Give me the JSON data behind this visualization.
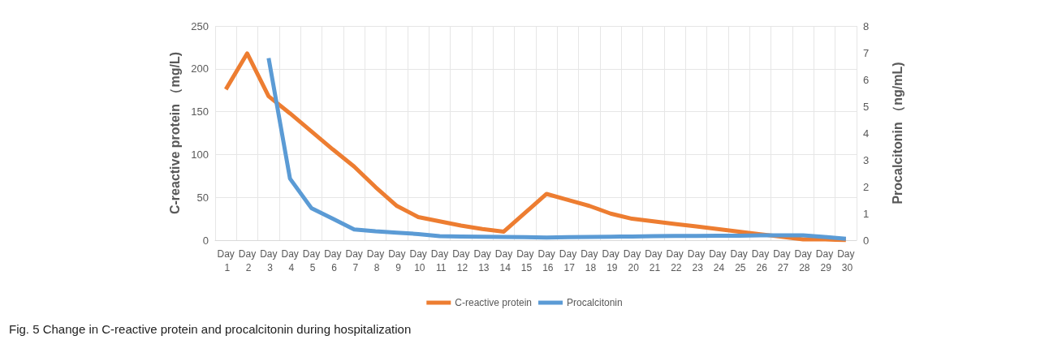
{
  "chart_data": {
    "type": "line",
    "title": "Fig. 5 Change in C-reactive protein and procalcitonin during hospitalization",
    "ylabel": "C-reactive protein （mg/L)",
    "y2label": "Procalcitonin （ng/mL)",
    "categories": [
      "Day 1",
      "Day 2",
      "Day 3",
      "Day 4",
      "Day 5",
      "Day 6",
      "Day 7",
      "Day 8",
      "Day 9",
      "Day 10",
      "Day 11",
      "Day 12",
      "Day 13",
      "Day 14",
      "Day 15",
      "Day 16",
      "Day 17",
      "Day 18",
      "Day 19",
      "Day 20",
      "Day 21",
      "Day 22",
      "Day 23",
      "Day 24",
      "Day 25",
      "Day 26",
      "Day 27",
      "Day 28",
      "Day 29",
      "Day 30"
    ],
    "series": [
      {
        "name": "C-reactive protein",
        "color": "#ed7d31",
        "values": [
          176,
          218,
          168,
          148,
          127,
          106,
          86,
          62,
          40,
          27,
          22,
          17,
          13,
          10,
          32,
          54,
          47,
          40,
          31,
          25,
          22,
          19,
          16,
          13,
          10,
          7,
          4,
          1,
          1,
          0
        ]
      },
      {
        "name": "Procalcitonin",
        "color": "#5b9bd5",
        "axis": "y2",
        "values": [
          null,
          null,
          6.8,
          2.3,
          1.2,
          0.8,
          0.4,
          0.33,
          0.28,
          0.23,
          0.15,
          0.14,
          0.13,
          0.12,
          0.11,
          0.1,
          0.11,
          0.12,
          0.13,
          0.14,
          0.15,
          0.16,
          0.16,
          0.17,
          0.17,
          0.18,
          0.18,
          0.18,
          0.12,
          0.05
        ]
      }
    ],
    "ylim": [
      0,
      250
    ],
    "yticks": [
      0,
      50,
      100,
      150,
      200,
      250
    ],
    "y2lim": [
      0,
      8
    ],
    "y2ticks": [
      0,
      1,
      2,
      3,
      4,
      5,
      6,
      7,
      8
    ],
    "grid": true,
    "legend": "bottom",
    "marker": "none",
    "line_style": "solid"
  }
}
